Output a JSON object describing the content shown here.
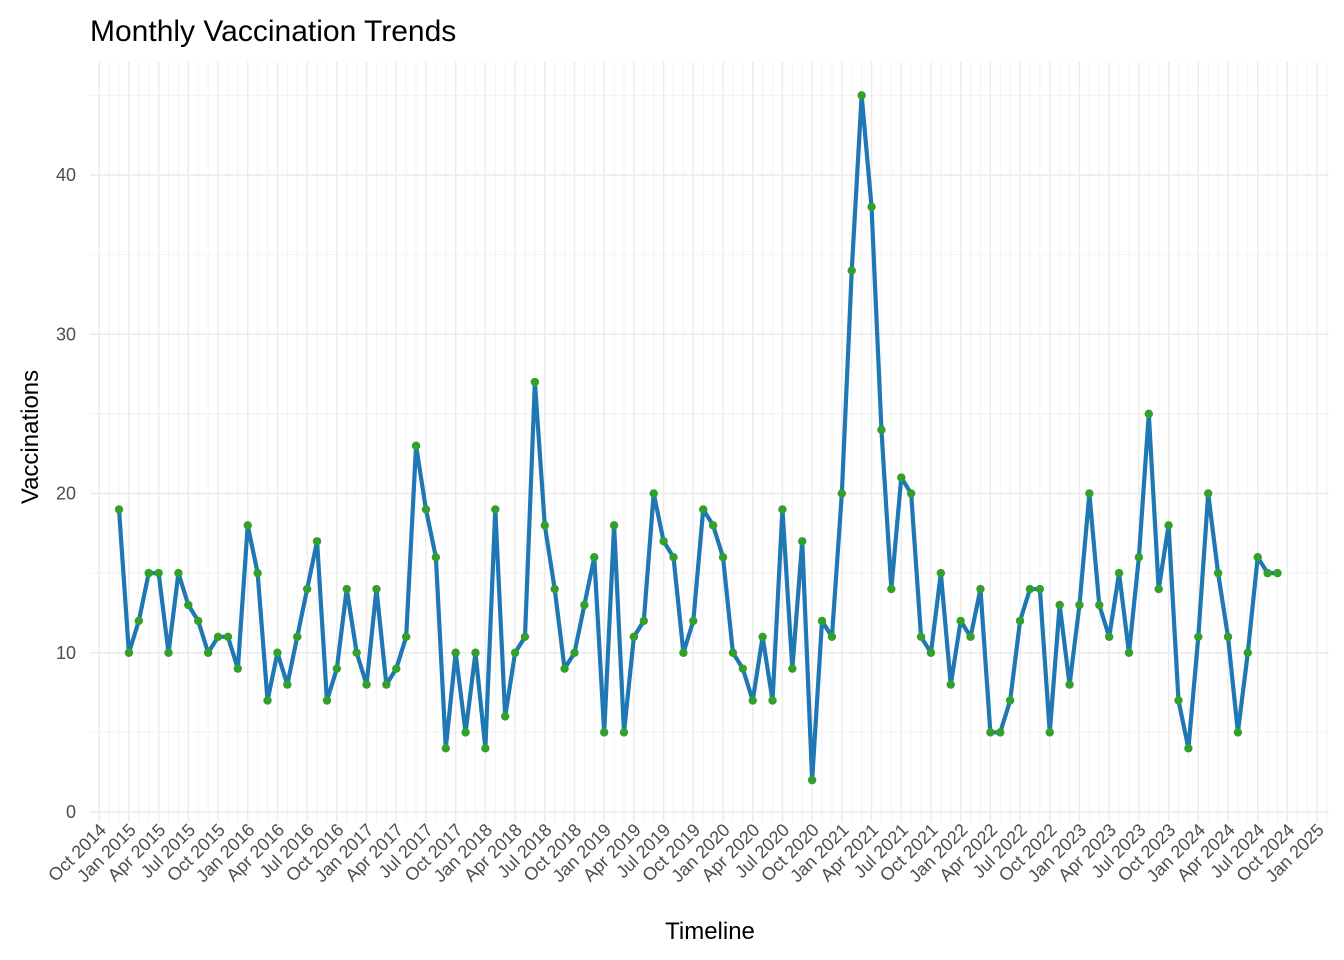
{
  "chart_data": {
    "type": "line",
    "title": "Monthly Vaccination Trends",
    "xlabel": "Timeline",
    "ylabel": "Vaccinations",
    "ylim": [
      0,
      45
    ],
    "y_ticks": [
      0,
      10,
      20,
      30,
      40
    ],
    "x_start": "Dec 2014",
    "x_end": "Nov 2024",
    "x_ticks": [
      "Oct 2014",
      "Jan 2015",
      "Apr 2015",
      "Jul 2015",
      "Oct 2015",
      "Jan 2016",
      "Apr 2016",
      "Jul 2016",
      "Oct 2016",
      "Jan 2017",
      "Apr 2017",
      "Jul 2017",
      "Oct 2017",
      "Jan 2018",
      "Apr 2018",
      "Jul 2018",
      "Oct 2018",
      "Jan 2019",
      "Apr 2019",
      "Jul 2019",
      "Oct 2019",
      "Jan 2020",
      "Apr 2020",
      "Jul 2020",
      "Oct 2020",
      "Jan 2021",
      "Apr 2021",
      "Jul 2021",
      "Oct 2021",
      "Jan 2022",
      "Apr 2022",
      "Jul 2022",
      "Oct 2022",
      "Jan 2023",
      "Apr 2023",
      "Jul 2023",
      "Oct 2023",
      "Jan 2024",
      "Apr 2024",
      "Jul 2024",
      "Oct 2024",
      "Jan 2025"
    ],
    "grid": true,
    "legend": "none",
    "series": [
      {
        "line_color": "#1f78b4",
        "point_color": "#33a02c",
        "values": [
          19,
          10,
          12,
          15,
          15,
          10,
          15,
          13,
          12,
          10,
          11,
          11,
          9,
          18,
          15,
          7,
          10,
          8,
          11,
          14,
          17,
          7,
          9,
          14,
          10,
          8,
          14,
          8,
          9,
          11,
          23,
          19,
          16,
          4,
          10,
          5,
          10,
          4,
          19,
          6,
          10,
          11,
          27,
          18,
          14,
          9,
          10,
          13,
          16,
          5,
          18,
          5,
          11,
          12,
          20,
          17,
          16,
          10,
          12,
          19,
          18,
          16,
          10,
          9,
          7,
          11,
          7,
          19,
          9,
          17,
          2,
          12,
          11,
          20,
          34,
          45,
          38,
          24,
          14,
          21,
          20,
          11,
          10,
          15,
          8,
          12,
          11,
          14,
          5,
          5,
          7,
          12,
          14,
          14,
          5,
          13,
          8,
          13,
          20,
          13,
          11,
          15,
          10,
          16,
          25,
          14,
          18,
          7,
          4,
          11,
          20,
          15,
          11,
          5,
          10,
          16,
          15,
          15
        ]
      }
    ]
  }
}
